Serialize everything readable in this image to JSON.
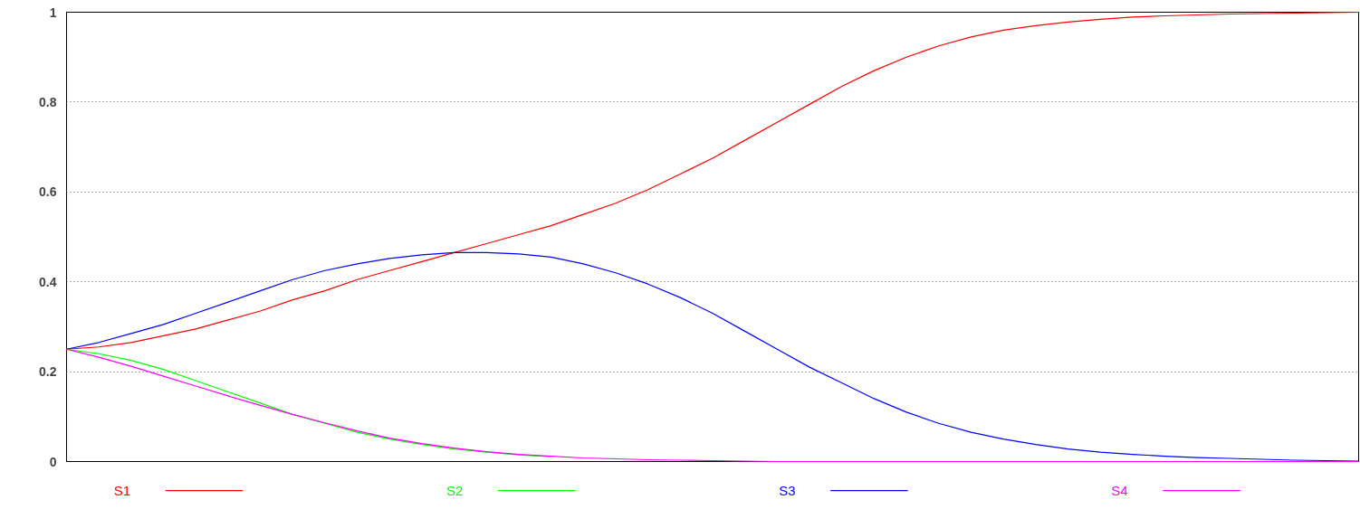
{
  "chart_data": {
    "type": "line",
    "categories": [
      null,
      null,
      null,
      null,
      null,
      null,
      null,
      null,
      null,
      null,
      null,
      null,
      null,
      null,
      null,
      null,
      null,
      null,
      null,
      null,
      null,
      null,
      null,
      null,
      null,
      null,
      null,
      null,
      null,
      null,
      null,
      null,
      null,
      null,
      null,
      null,
      null,
      null,
      null,
      null,
      null
    ],
    "series": [
      {
        "name": "S1",
        "color": "#ff0000",
        "values": [
          0.25,
          0.255,
          0.265,
          0.28,
          0.295,
          0.315,
          0.335,
          0.36,
          0.38,
          0.405,
          0.425,
          0.445,
          0.465,
          0.485,
          0.505,
          0.525,
          0.55,
          0.575,
          0.605,
          0.64,
          0.675,
          0.715,
          0.755,
          0.795,
          0.835,
          0.87,
          0.9,
          0.925,
          0.945,
          0.96,
          0.97,
          0.978,
          0.984,
          0.989,
          0.992,
          0.994,
          0.996,
          0.997,
          0.998,
          0.999,
          1.0
        ]
      },
      {
        "name": "S2",
        "color": "#00ff00",
        "values": [
          0.25,
          0.24,
          0.225,
          0.205,
          0.18,
          0.155,
          0.13,
          0.105,
          0.085,
          0.065,
          0.05,
          0.038,
          0.028,
          0.021,
          0.015,
          0.011,
          null,
          null,
          null,
          null,
          null,
          null,
          null,
          null,
          null,
          null,
          null,
          null,
          null,
          null,
          null,
          null,
          null,
          null,
          null,
          null,
          null,
          null,
          null,
          null,
          null
        ]
      },
      {
        "name": "S3",
        "color": "#0000ff",
        "values": [
          0.25,
          0.265,
          0.285,
          0.305,
          0.33,
          0.355,
          0.38,
          0.405,
          0.425,
          0.44,
          0.452,
          0.46,
          0.465,
          0.465,
          0.462,
          0.455,
          0.44,
          0.42,
          0.395,
          0.365,
          0.33,
          0.29,
          0.25,
          0.21,
          0.175,
          0.14,
          0.11,
          0.085,
          0.065,
          0.05,
          0.038,
          0.028,
          0.021,
          0.016,
          0.012,
          0.009,
          0.007,
          0.005,
          0.003,
          0.002,
          0.001
        ]
      },
      {
        "name": "S4",
        "color": "#ff00ff",
        "values": [
          0.25,
          0.232,
          0.212,
          0.19,
          0.168,
          0.146,
          0.125,
          0.105,
          0.086,
          0.068,
          0.052,
          0.04,
          0.03,
          0.022,
          0.016,
          0.012,
          0.008,
          0.006,
          0.004,
          0.003,
          0.002,
          0.001,
          0,
          0,
          0,
          0,
          0,
          0,
          0,
          0,
          0,
          0,
          0,
          0,
          0,
          0,
          0,
          0,
          0,
          0,
          0
        ]
      }
    ],
    "ylim": [
      0,
      1
    ],
    "yticks": [
      0,
      0.2,
      0.4,
      0.6,
      0.8,
      1
    ],
    "grid": "y",
    "legend": "bottom",
    "tick_labels": "y",
    "marker": "none",
    "line_style": "solid"
  }
}
